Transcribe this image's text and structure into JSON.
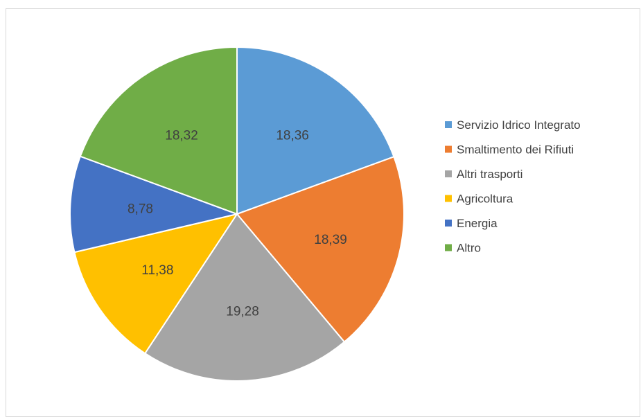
{
  "chart_data": {
    "type": "pie",
    "title": "",
    "legend_position": "right",
    "slices": [
      {
        "label": "Servizio Idrico Integrato",
        "value": 18.36,
        "value_text": "18,36",
        "color": "#5b9bd5"
      },
      {
        "label": "Smaltimento dei Rifiuti",
        "value": 18.39,
        "value_text": "18,39",
        "color": "#ed7d31"
      },
      {
        "label": "Altri trasporti",
        "value": 19.28,
        "value_text": "19,28",
        "color": "#a5a5a5"
      },
      {
        "label": "Agricoltura",
        "value": 11.38,
        "value_text": "11,38",
        "color": "#ffc000"
      },
      {
        "label": "Energia",
        "value": 8.78,
        "value_text": "8,78",
        "color": "#4472c4"
      },
      {
        "label": "Altro",
        "value": 18.32,
        "value_text": "18,32",
        "color": "#70ad47"
      }
    ]
  }
}
